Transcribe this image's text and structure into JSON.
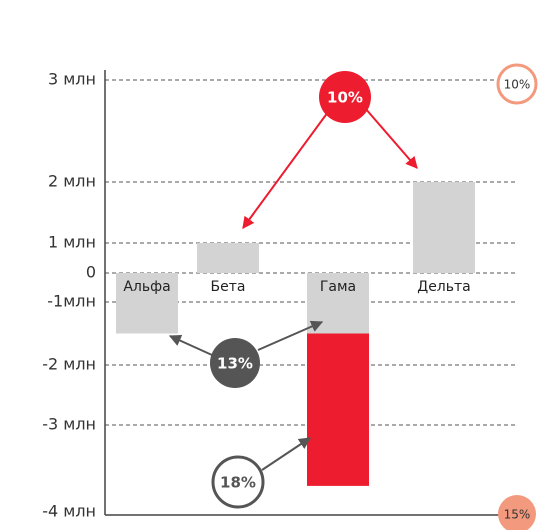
{
  "chart_data": {
    "type": "bar",
    "categories": [
      "Альфа",
      "Бета",
      "Гама",
      "Дельта"
    ],
    "series": [
      {
        "color": "#d3d3d4",
        "values": [
          -1.5,
          1,
          -1.5,
          2
        ]
      },
      {
        "color": "#ed1c2e",
        "values": [
          null,
          null,
          -2.2,
          null
        ]
      }
    ],
    "ylim": [
      -4,
      3
    ],
    "yticks": [
      {
        "value": 3,
        "label": "3 млн"
      },
      {
        "value": 2,
        "label": "2 млн"
      },
      {
        "value": 1,
        "label": "1 млн"
      },
      0,
      {
        "value": -1,
        "label": "-1млн"
      },
      {
        "value": -2,
        "label": "-2 млн"
      },
      {
        "value": -3,
        "label": "-3 млн"
      },
      {
        "value": -4,
        "label": "-4 млн"
      }
    ],
    "grid": true,
    "annotations": [
      "10%",
      "13%",
      "18%",
      "10%",
      "15%"
    ]
  }
}
